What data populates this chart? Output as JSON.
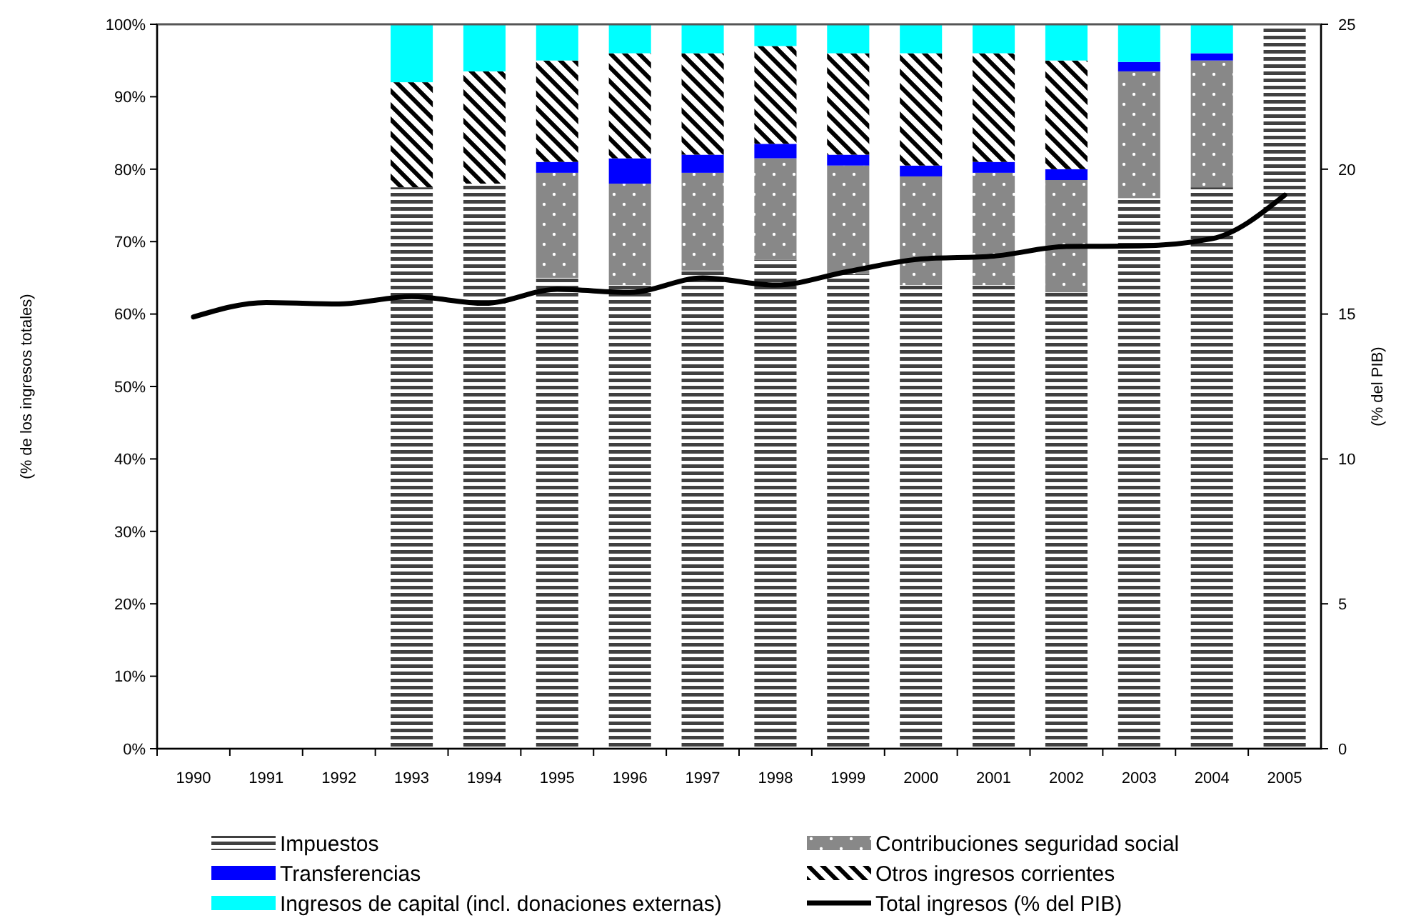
{
  "chart_data": {
    "type": "bar",
    "stacked": true,
    "categories": [
      "1990",
      "1991",
      "1992",
      "1993",
      "1994",
      "1995",
      "1996",
      "1997",
      "1998",
      "1999",
      "2000",
      "2001",
      "2002",
      "2003",
      "2004",
      "2005"
    ],
    "series": [
      {
        "name": "Impuestos",
        "color": "#404040",
        "values": [
          null,
          null,
          null,
          77.5,
          78,
          65,
          64,
          66,
          67.5,
          65.5,
          64,
          64,
          63,
          76,
          77.5,
          100
        ]
      },
      {
        "name": "Contribuciones seguridad social",
        "color": "#888888",
        "values": [
          null,
          null,
          null,
          0,
          0,
          14.5,
          14,
          13.5,
          14,
          15,
          15,
          15.5,
          15.5,
          17.5,
          17.5,
          0
        ]
      },
      {
        "name": "Transferencias",
        "color": "#0000ff",
        "values": [
          null,
          null,
          null,
          0,
          0,
          1.5,
          3.5,
          2.5,
          2,
          1.5,
          1.5,
          1.5,
          1.5,
          1.3,
          1,
          0
        ]
      },
      {
        "name": "Otros ingresos corrientes",
        "color": "#000000",
        "values": [
          null,
          null,
          null,
          14.5,
          15.5,
          14,
          14.5,
          14,
          13.5,
          14,
          15.5,
          15,
          15,
          0,
          0,
          0
        ]
      },
      {
        "name": "Ingresos de capital (incl. donaciones externas)",
        "color": "#00ffff",
        "values": [
          null,
          null,
          null,
          8,
          6.5,
          5,
          4,
          4,
          3,
          4,
          4,
          4,
          5,
          5.2,
          4,
          0
        ]
      },
      {
        "name": "Total ingresos (% del PIB)",
        "type": "line",
        "axis": "y2",
        "color": "#000000",
        "values": [
          14.9,
          15.4,
          15.35,
          15.6,
          15.37,
          15.85,
          15.75,
          16.25,
          16.0,
          16.47,
          16.9,
          17.0,
          17.33,
          17.35,
          17.6,
          19.1
        ]
      }
    ],
    "ylabel": "(% de los ingresos totales)",
    "y2label": "(% del PIB)",
    "ylim": [
      0,
      100
    ],
    "yticks": [
      {
        "value": 0,
        "label": "0%"
      },
      {
        "value": 10,
        "label": "10%"
      },
      {
        "value": 20,
        "label": "20%"
      },
      {
        "value": 30,
        "label": "30%"
      },
      {
        "value": 40,
        "label": "40%"
      },
      {
        "value": 50,
        "label": "50%"
      },
      {
        "value": 60,
        "label": "60%"
      },
      {
        "value": 70,
        "label": "70%"
      },
      {
        "value": 80,
        "label": "80%"
      },
      {
        "value": 90,
        "label": "90%"
      },
      {
        "value": 100,
        "label": "100%"
      }
    ],
    "y2lim": [
      0,
      25
    ],
    "y2ticks": [
      0,
      5,
      10,
      15,
      20,
      25
    ],
    "legend": "bottom",
    "grid": false,
    "marker": "none",
    "line_style": "solid"
  }
}
